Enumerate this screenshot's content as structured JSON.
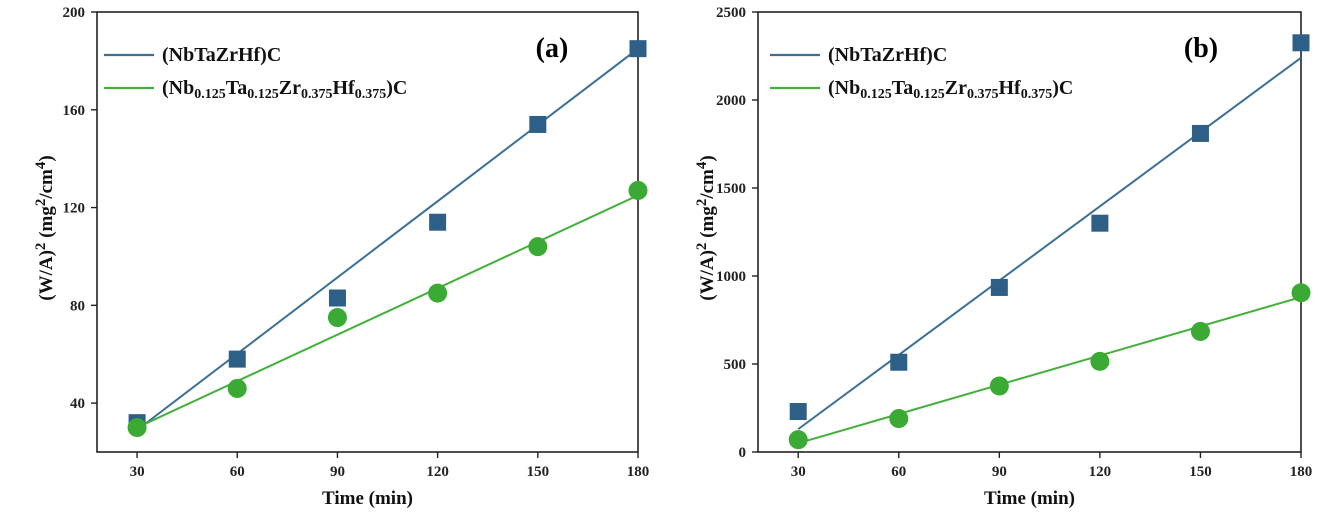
{
  "chart_data": [
    {
      "type": "scatter",
      "panel_label": "(a)",
      "xlabel": "Time (min)",
      "ylabel": {
        "base": "(W/A)",
        "sup": "2",
        "unit_open": " (mg",
        "unit_sup1": "2",
        "unit_mid": "/cm",
        "unit_sup2": "4",
        "unit_close": ")"
      },
      "x_ticks": [
        "30",
        "60",
        "90",
        "120",
        "150",
        "180"
      ],
      "y_ticks": [
        "40",
        "80",
        "120",
        "160",
        "200"
      ],
      "xlim": [
        18,
        180
      ],
      "ylim": [
        20,
        200
      ],
      "legend_position": "top-left",
      "series": [
        {
          "name": "(NbTaZrHf)C",
          "name_parts": [
            [
              "(NbTaZrHf)C",
              ""
            ]
          ],
          "marker": "square",
          "color": "#2e5f86",
          "line_color": "#3d6f96",
          "x": [
            30,
            60,
            90,
            120,
            150,
            180
          ],
          "y": [
            32,
            58,
            83,
            114,
            154,
            185
          ],
          "fit": [
            [
              30,
              29
            ],
            [
              180,
              185
            ]
          ]
        },
        {
          "name": "(Nb0.125Ta0.125Zr0.375Hf0.375)C",
          "name_parts": [
            [
              "(Nb",
              ""
            ],
            [
              "0.125",
              "sub"
            ],
            [
              "Ta",
              ""
            ],
            [
              "0.125",
              "sub"
            ],
            [
              "Zr",
              ""
            ],
            [
              "0.375",
              "sub"
            ],
            [
              "Hf",
              ""
            ],
            [
              "0.375",
              "sub"
            ],
            [
              ")C",
              ""
            ]
          ],
          "marker": "circle",
          "color": "#3aaa35",
          "line_color": "#44b03c",
          "x": [
            30,
            60,
            90,
            120,
            150,
            180
          ],
          "y": [
            30,
            46,
            75,
            85,
            104,
            127
          ],
          "fit": [
            [
              30,
              30
            ],
            [
              180,
              125
            ]
          ]
        }
      ]
    },
    {
      "type": "scatter",
      "panel_label": "(b)",
      "xlabel": "Time (min)",
      "ylabel": {
        "base": "(W/A)",
        "sup": "2",
        "unit_open": " (mg",
        "unit_sup1": "2",
        "unit_mid": "/cm",
        "unit_sup2": "4",
        "unit_close": ")"
      },
      "x_ticks": [
        "30",
        "60",
        "90",
        "120",
        "150",
        "180"
      ],
      "y_ticks": [
        "0",
        "500",
        "1000",
        "1500",
        "2000",
        "2500"
      ],
      "xlim": [
        18,
        180
      ],
      "ylim": [
        0,
        2500
      ],
      "legend_position": "top-left",
      "series": [
        {
          "name": "(NbTaZrHf)C",
          "name_parts": [
            [
              "(NbTaZrHf)C",
              ""
            ]
          ],
          "marker": "square",
          "color": "#2e5f86",
          "line_color": "#3d6f96",
          "x": [
            30,
            60,
            90,
            120,
            150,
            180
          ],
          "y": [
            230,
            510,
            935,
            1300,
            1810,
            2325
          ],
          "fit": [
            [
              30,
              130
            ],
            [
              180,
              2240
            ]
          ]
        },
        {
          "name": "(Nb0.125Ta0.125Zr0.375Hf0.375)C",
          "name_parts": [
            [
              "(Nb",
              ""
            ],
            [
              "0.125",
              "sub"
            ],
            [
              "Ta",
              ""
            ],
            [
              "0.125",
              "sub"
            ],
            [
              "Zr",
              ""
            ],
            [
              "0.375",
              "sub"
            ],
            [
              "Hf",
              ""
            ],
            [
              "0.375",
              "sub"
            ],
            [
              ")C",
              ""
            ]
          ],
          "marker": "circle",
          "color": "#3aaa35",
          "line_color": "#44b03c",
          "x": [
            30,
            60,
            90,
            120,
            150,
            180
          ],
          "y": [
            70,
            190,
            375,
            515,
            685,
            905
          ],
          "fit": [
            [
              30,
              50
            ],
            [
              180,
              880
            ]
          ]
        }
      ]
    }
  ]
}
